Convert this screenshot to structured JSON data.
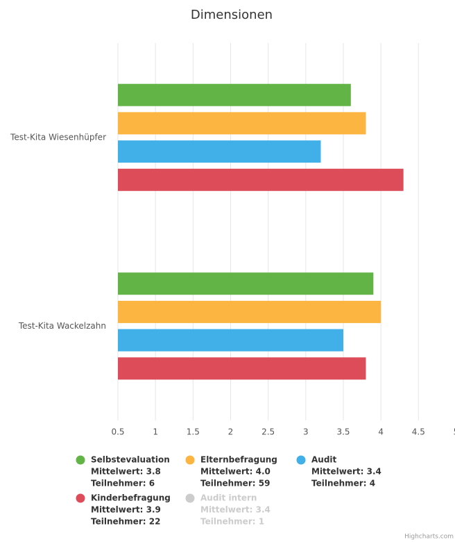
{
  "chart_data": {
    "type": "hbar",
    "title": "Dimensionen",
    "categories": [
      "Test-Kita Wiesenhüpfer",
      "Test-Kita Wackelzahn"
    ],
    "xlim": [
      0.5,
      5
    ],
    "xticks": [
      0.5,
      1,
      1.5,
      2,
      2.5,
      3,
      3.5,
      4,
      4.5,
      5
    ],
    "grid": true,
    "series": [
      {
        "name": "Selbstevaluation",
        "color": "#62b446",
        "visible": true,
        "values": [
          3.6,
          3.9
        ],
        "details": [
          "Mittelwert: 3.8",
          "Teilnehmer: 6"
        ]
      },
      {
        "name": "Elternbefragung",
        "color": "#fbb540",
        "visible": true,
        "values": [
          3.8,
          4.0
        ],
        "details": [
          "Mittelwert: 4.0",
          "Teilnehmer: 59"
        ]
      },
      {
        "name": "Audit",
        "color": "#41b0e8",
        "visible": true,
        "values": [
          3.2,
          3.5
        ],
        "details": [
          "Mittelwert: 3.4",
          "Teilnehmer: 4"
        ]
      },
      {
        "name": "Kinderbefragung",
        "color": "#dc4d59",
        "visible": true,
        "values": [
          4.3,
          3.8
        ],
        "details": [
          "Mittelwert: 3.9",
          "Teilnehmer: 22"
        ]
      },
      {
        "name": "Audit intern",
        "color": "#cccccc",
        "visible": false,
        "values": [
          null,
          null
        ],
        "details": [
          "Mittelwert: 3.4",
          "Teilnehmer: 1"
        ]
      }
    ],
    "credits": "Highcharts.com"
  }
}
